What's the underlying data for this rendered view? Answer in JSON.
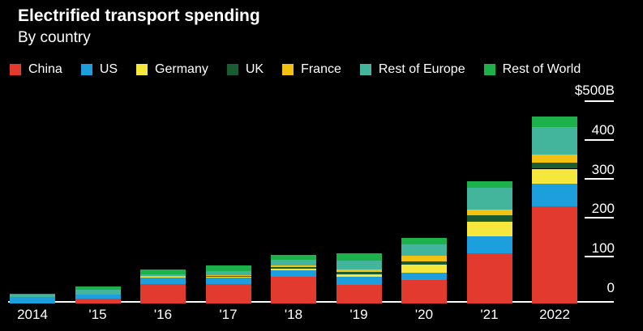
{
  "header": {
    "title": "Electrified transport spending",
    "subtitle": "By country"
  },
  "axis": {
    "y_labels": [
      "$500B",
      "400",
      "300",
      "200",
      "100",
      "0"
    ]
  },
  "chart_data": {
    "type": "bar",
    "stacked": true,
    "title": "Electrified transport spending",
    "subtitle": "By country",
    "unit": "US$ billion",
    "ylabel": "$500B",
    "ylim": [
      0,
      500
    ],
    "legend_position": "top",
    "categories": [
      "2014",
      "'15",
      "'16",
      "'17",
      "'18",
      "'19",
      "'20",
      "'21",
      "2022"
    ],
    "series": [
      {
        "name": "China",
        "color": "#e23a2e",
        "values": [
          0,
          12,
          49,
          49,
          67,
          47,
          59,
          125,
          241
        ]
      },
      {
        "name": "US",
        "color": "#1d9fde",
        "values": [
          16,
          11,
          16,
          16,
          16,
          20,
          18,
          41,
          57
        ]
      },
      {
        "name": "Germany",
        "color": "#f6e73d",
        "values": [
          0,
          0,
          2,
          3,
          4,
          6,
          20,
          37,
          37
        ]
      },
      {
        "name": "UK",
        "color": "#1a5c31",
        "values": [
          0,
          0,
          1,
          1,
          4,
          6,
          8,
          16,
          16
        ]
      },
      {
        "name": "France",
        "color": "#f2c112",
        "values": [
          0,
          0,
          1,
          2,
          4,
          6,
          14,
          14,
          20
        ]
      },
      {
        "name": "Rest of Europe",
        "color": "#43b59c",
        "values": [
          8,
          12,
          4,
          10,
          14,
          22,
          27,
          55,
          67
        ]
      },
      {
        "name": "Rest of World",
        "color": "#1db14b",
        "values": [
          1,
          8,
          12,
          13,
          12,
          17,
          16,
          16,
          27
        ]
      }
    ]
  }
}
